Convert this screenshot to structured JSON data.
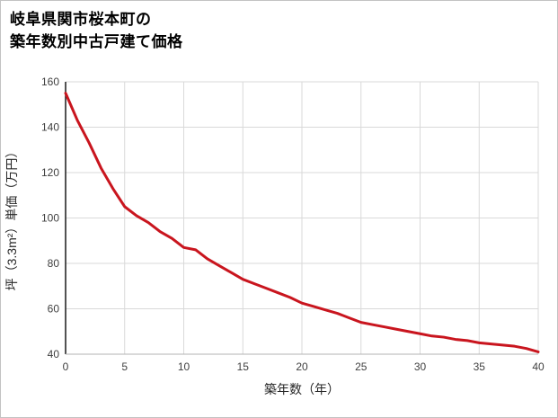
{
  "title": {
    "line1": "岐阜県関市桜本町の",
    "line2": "築年数別中古戸建て価格"
  },
  "chart_data": {
    "type": "line",
    "title": "岐阜県関市桜本町の築年数別中古戸建て価格",
    "xlabel": "築年数（年）",
    "ylabel": "坪（3.3m²）単価（万円）",
    "xlim": [
      0,
      40
    ],
    "ylim": [
      40,
      160
    ],
    "xticks": [
      0,
      5,
      10,
      15,
      20,
      25,
      30,
      35,
      40
    ],
    "yticks": [
      40,
      60,
      80,
      100,
      120,
      140,
      160
    ],
    "grid": true,
    "legend": "none",
    "line_color": "#c9151e",
    "grid_color": "#d9d9d9",
    "axis_spine_color": "#1a1a1a",
    "x": [
      0,
      1,
      2,
      3,
      4,
      5,
      6,
      7,
      8,
      9,
      10,
      11,
      12,
      13,
      14,
      15,
      16,
      17,
      18,
      19,
      20,
      21,
      22,
      23,
      24,
      25,
      26,
      27,
      28,
      29,
      30,
      31,
      32,
      33,
      34,
      35,
      36,
      37,
      38,
      39,
      40
    ],
    "values": [
      155,
      143,
      133,
      122,
      113,
      105,
      101,
      98,
      94,
      91,
      87,
      86,
      82,
      79,
      76,
      73,
      71,
      69,
      67,
      65,
      62.5,
      61,
      59.5,
      58,
      56,
      54,
      53,
      52,
      51,
      50,
      49,
      48,
      47.5,
      46.5,
      46,
      45,
      44.5,
      44,
      43.5,
      42.5,
      41
    ]
  }
}
